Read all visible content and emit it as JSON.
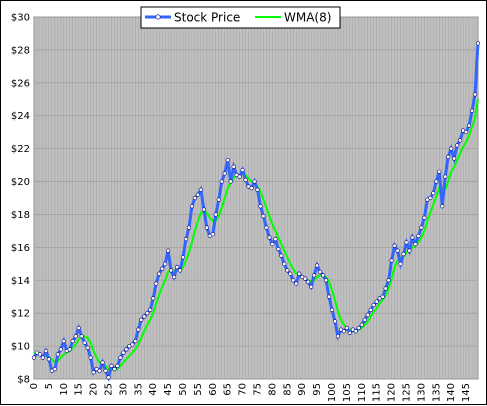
{
  "chart_data": {
    "type": "line",
    "title": "",
    "xlabel": "",
    "ylabel": "",
    "xlim": [
      0,
      149
    ],
    "ylim": [
      8,
      30
    ],
    "grid": true,
    "legend_position": "top-center",
    "y_ticks": [
      8,
      10,
      12,
      14,
      16,
      18,
      20,
      22,
      24,
      26,
      28,
      30
    ],
    "y_tick_labels": [
      "$8",
      "$10",
      "$12",
      "$14",
      "$16",
      "$18",
      "$20",
      "$22",
      "$24",
      "$26",
      "$28",
      "$30"
    ],
    "x_ticks": [
      0,
      5,
      10,
      15,
      20,
      25,
      30,
      35,
      40,
      45,
      50,
      55,
      60,
      65,
      70,
      75,
      80,
      85,
      90,
      95,
      100,
      105,
      110,
      115,
      120,
      125,
      130,
      135,
      140,
      145
    ],
    "colors": {
      "plot_background": "#c0c0c0",
      "grid": "#a0a0a0",
      "stock": "#3366ff",
      "wma": "#00ff00",
      "marker": "#ffffff"
    },
    "series": [
      {
        "name": "Stock Price",
        "values": [
          9.3,
          9.6,
          9.5,
          9.3,
          9.7,
          9.2,
          8.5,
          8.6,
          9.5,
          9.8,
          10.3,
          9.7,
          9.8,
          10.3,
          10.6,
          11.1,
          10.6,
          10.2,
          9.9,
          9.3,
          8.4,
          8.6,
          8.5,
          9.0,
          8.5,
          8.1,
          8.8,
          8.6,
          8.8,
          9.3,
          9.6,
          9.8,
          10.0,
          10.1,
          10.3,
          11.0,
          11.6,
          11.8,
          12.0,
          12.2,
          12.9,
          13.8,
          14.4,
          14.7,
          15.0,
          15.8,
          14.6,
          14.2,
          14.8,
          14.6,
          15.4,
          16.5,
          17.2,
          18.5,
          19.0,
          19.2,
          19.5,
          18.3,
          17.2,
          16.7,
          16.8,
          18.0,
          18.9,
          20.0,
          20.5,
          21.3,
          20.0,
          20.9,
          20.4,
          20.3,
          20.7,
          20.1,
          19.7,
          19.6,
          20.0,
          19.5,
          18.5,
          17.9,
          17.2,
          16.6,
          16.2,
          16.5,
          15.9,
          15.5,
          15.0,
          14.6,
          14.4,
          14.0,
          13.8,
          14.4,
          14.2,
          14.1,
          13.9,
          13.6,
          14.3,
          14.9,
          14.5,
          14.3,
          14.0,
          13.0,
          12.2,
          11.5,
          10.6,
          11.0,
          10.9,
          11.1,
          10.8,
          11.0,
          10.9,
          11.1,
          11.3,
          11.6,
          11.9,
          12.2,
          12.5,
          12.7,
          12.9,
          13.0,
          13.5,
          14.0,
          15.2,
          16.1,
          15.8,
          15.0,
          15.6,
          16.3,
          15.8,
          16.6,
          16.2,
          16.7,
          17.2,
          17.8,
          18.9,
          19.0,
          19.3,
          20.0,
          20.6,
          18.5,
          20.3,
          21.5,
          22.0,
          21.4,
          22.2,
          22.5,
          23.1,
          23.0,
          23.4,
          24.3,
          25.3,
          28.4
        ]
      },
      {
        "name": "WMA(8)",
        "values": [
          9.6,
          9.5,
          9.5,
          9.4,
          9.4,
          9.3,
          9.2,
          9.0,
          9.1,
          9.3,
          9.5,
          9.6,
          9.7,
          9.9,
          10.1,
          10.4,
          10.6,
          10.6,
          10.5,
          10.2,
          9.7,
          9.3,
          9.0,
          8.9,
          8.8,
          8.6,
          8.6,
          8.6,
          8.6,
          8.8,
          9.0,
          9.2,
          9.4,
          9.6,
          9.8,
          10.1,
          10.5,
          10.9,
          11.3,
          11.6,
          12.0,
          12.6,
          13.1,
          13.6,
          14.0,
          14.5,
          14.6,
          14.6,
          14.6,
          14.6,
          14.8,
          15.2,
          15.7,
          16.3,
          17.0,
          17.6,
          18.1,
          18.2,
          18.1,
          17.8,
          17.6,
          17.6,
          17.9,
          18.4,
          19.0,
          19.6,
          19.9,
          20.2,
          20.4,
          20.4,
          20.5,
          20.4,
          20.2,
          20.0,
          19.9,
          19.7,
          19.4,
          18.9,
          18.4,
          17.9,
          17.4,
          17.0,
          16.6,
          16.2,
          15.8,
          15.4,
          15.0,
          14.7,
          14.4,
          14.3,
          14.2,
          14.1,
          14.0,
          13.9,
          14.0,
          14.2,
          14.3,
          14.3,
          14.2,
          13.9,
          13.4,
          12.8,
          12.1,
          11.6,
          11.3,
          11.1,
          11.0,
          10.9,
          10.9,
          11.0,
          11.1,
          11.3,
          11.5,
          11.8,
          12.1,
          12.3,
          12.6,
          12.8,
          13.1,
          13.5,
          14.1,
          14.8,
          15.2,
          15.3,
          15.4,
          15.7,
          15.8,
          16.0,
          16.1,
          16.3,
          16.6,
          17.0,
          17.6,
          18.1,
          18.6,
          19.1,
          19.6,
          19.4,
          19.5,
          20.0,
          20.6,
          20.9,
          21.3,
          21.7,
          22.1,
          22.4,
          22.8,
          23.3,
          23.9,
          25.0
        ]
      }
    ]
  }
}
